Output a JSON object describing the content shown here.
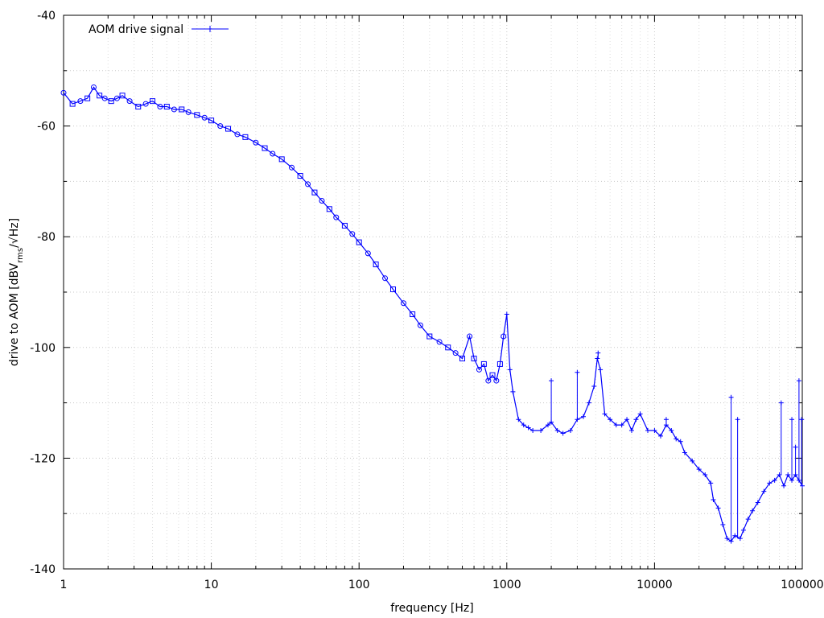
{
  "chart_data": {
    "type": "line",
    "x_scale": "log",
    "xlim": [
      1,
      100000
    ],
    "ylim": [
      -140,
      -40
    ],
    "xlabel": "frequency [Hz]",
    "ylabel_main": "drive to AOM [dBV",
    "ylabel_sub": "rms",
    "ylabel_tail": "/√Hz]",
    "x_ticks": [
      "1",
      "10",
      "100",
      "1000",
      "10000",
      "100000"
    ],
    "y_ticks": [
      "-40",
      "-60",
      "-80",
      "-100",
      "-120",
      "-140"
    ],
    "grid": true,
    "legend_position": "top-left",
    "series": [
      {
        "name": "AOM drive signal",
        "color": "#0000ff",
        "marker": "plus",
        "points": [
          [
            1,
            -54
          ],
          [
            1.15,
            -56
          ],
          [
            1.3,
            -55.5
          ],
          [
            1.45,
            -55
          ],
          [
            1.6,
            -53
          ],
          [
            1.75,
            -54.5
          ],
          [
            1.9,
            -55
          ],
          [
            2.1,
            -55.5
          ],
          [
            2.3,
            -55
          ],
          [
            2.5,
            -54.5
          ],
          [
            2.8,
            -55.5
          ],
          [
            3.2,
            -56.5
          ],
          [
            3.6,
            -56
          ],
          [
            4.0,
            -55.5
          ],
          [
            4.5,
            -56.5
          ],
          [
            5.0,
            -56.5
          ],
          [
            5.6,
            -57
          ],
          [
            6.3,
            -57
          ],
          [
            7.0,
            -57.5
          ],
          [
            8.0,
            -58
          ],
          [
            9.0,
            -58.5
          ],
          [
            10,
            -59
          ],
          [
            11.5,
            -60
          ],
          [
            13,
            -60.5
          ],
          [
            15,
            -61.5
          ],
          [
            17,
            -62
          ],
          [
            20,
            -63
          ],
          [
            23,
            -64
          ],
          [
            26,
            -65
          ],
          [
            30,
            -66
          ],
          [
            35,
            -67.5
          ],
          [
            40,
            -69
          ],
          [
            45,
            -70.5
          ],
          [
            50,
            -72
          ],
          [
            56,
            -73.5
          ],
          [
            63,
            -75
          ],
          [
            70,
            -76.5
          ],
          [
            80,
            -78
          ],
          [
            90,
            -79.5
          ],
          [
            100,
            -81
          ],
          [
            115,
            -83
          ],
          [
            130,
            -85
          ],
          [
            150,
            -87.5
          ],
          [
            170,
            -89.5
          ],
          [
            200,
            -92
          ],
          [
            230,
            -94
          ],
          [
            260,
            -96
          ],
          [
            300,
            -98
          ],
          [
            350,
            -99
          ],
          [
            400,
            -100
          ],
          [
            450,
            -101
          ],
          [
            500,
            -102
          ],
          [
            560,
            -98
          ],
          [
            600,
            -102
          ],
          [
            650,
            -104
          ],
          [
            700,
            -103
          ],
          [
            750,
            -106
          ],
          [
            800,
            -105
          ],
          [
            850,
            -106
          ],
          [
            900,
            -103
          ],
          [
            950,
            -98
          ],
          [
            1000,
            -94
          ],
          [
            1050,
            -104
          ],
          [
            1100,
            -108
          ],
          [
            1200,
            -113
          ],
          [
            1300,
            -114
          ],
          [
            1400,
            -114.5
          ],
          [
            1500,
            -115
          ],
          [
            1700,
            -115
          ],
          [
            1900,
            -114
          ],
          [
            2000,
            -113.5
          ],
          [
            2200,
            -115
          ],
          [
            2400,
            -115.5
          ],
          [
            2700,
            -115
          ],
          [
            3000,
            -113
          ],
          [
            3300,
            -112.5
          ],
          [
            3600,
            -110
          ],
          [
            3900,
            -107
          ],
          [
            4100,
            -102
          ],
          [
            4300,
            -104
          ],
          [
            4600,
            -112
          ],
          [
            5000,
            -113
          ],
          [
            5500,
            -114
          ],
          [
            6000,
            -114
          ],
          [
            6500,
            -113
          ],
          [
            7000,
            -115
          ],
          [
            7500,
            -113
          ],
          [
            8000,
            -112
          ],
          [
            9000,
            -115
          ],
          [
            10000,
            -115
          ],
          [
            11000,
            -116
          ],
          [
            12000,
            -114
          ],
          [
            13000,
            -115
          ],
          [
            14000,
            -116.5
          ],
          [
            15000,
            -117
          ],
          [
            16000,
            -119
          ],
          [
            18000,
            -120.5
          ],
          [
            20000,
            -122
          ],
          [
            22000,
            -123
          ],
          [
            24000,
            -124.5
          ],
          [
            25000,
            -127.5
          ],
          [
            27000,
            -129
          ],
          [
            29000,
            -132
          ],
          [
            31000,
            -134.5
          ],
          [
            33000,
            -135
          ],
          [
            35000,
            -134
          ],
          [
            38000,
            -134.5
          ],
          [
            40000,
            -133
          ],
          [
            43000,
            -131
          ],
          [
            46000,
            -129.5
          ],
          [
            50000,
            -128
          ],
          [
            55000,
            -126
          ],
          [
            60000,
            -124.5
          ],
          [
            65000,
            -124
          ],
          [
            70000,
            -123
          ],
          [
            75000,
            -125
          ],
          [
            80000,
            -123
          ],
          [
            85000,
            -124
          ],
          [
            90000,
            -123
          ],
          [
            95000,
            -124
          ],
          [
            100000,
            -125
          ]
        ],
        "spikes": [
          [
            2000,
            -106
          ],
          [
            3000,
            -104.5
          ],
          [
            4150,
            -101
          ],
          [
            12000,
            -113
          ],
          [
            33000,
            -109
          ],
          [
            36500,
            -113
          ],
          [
            72000,
            -110
          ],
          [
            85000,
            -113
          ],
          [
            90000,
            -118
          ],
          [
            95000,
            -106
          ],
          [
            99000,
            -113
          ]
        ]
      }
    ]
  }
}
